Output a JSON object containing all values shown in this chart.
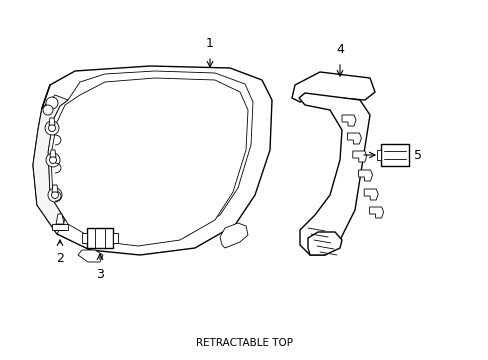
{
  "bg_color": "#ffffff",
  "line_color": "#000000",
  "lw": 1.0,
  "tlw": 0.6,
  "figure_width": 4.89,
  "figure_height": 3.6,
  "dpi": 100,
  "title": "RETRACTABLE TOP"
}
